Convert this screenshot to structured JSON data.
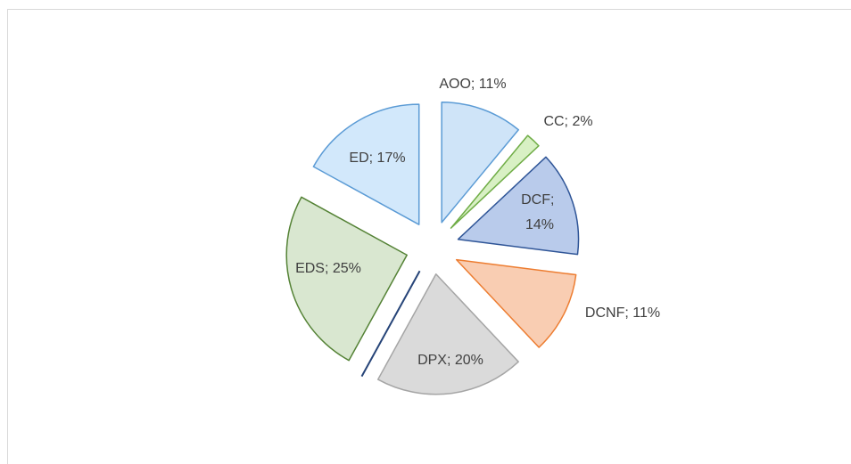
{
  "chart_data": {
    "type": "pie",
    "categories": [
      "AOO",
      "CC",
      "DCF",
      "DCNF",
      "DPX",
      null,
      "EDS",
      "ED"
    ],
    "values": [
      11,
      2,
      14,
      11,
      20,
      0,
      25,
      17
    ],
    "value_labels": [
      "11%",
      "2%",
      "14%",
      "11%",
      "20%",
      null,
      "25%",
      "17%"
    ],
    "label_separator": "; ",
    "colors": [
      "#cfe4f8",
      "#d8f0c4",
      "#b9cbeb",
      "#f9cdb2",
      "#dadada",
      "#c5d3ea",
      "#d9e7d0",
      "#d2e8fb"
    ],
    "edge_colors": [
      "#5b9bd5",
      "#70ad47",
      "#2f5597",
      "#ed7d31",
      "#a5a5a5",
      "#264478",
      "#548235",
      "#5b9bd5"
    ]
  }
}
